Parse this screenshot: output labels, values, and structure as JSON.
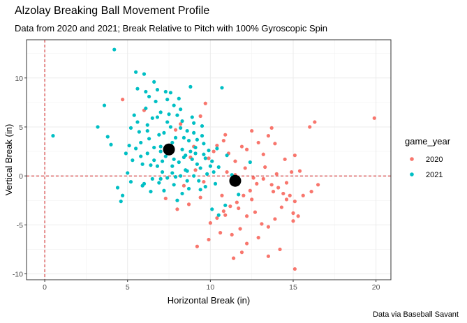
{
  "chart_data": {
    "type": "scatter",
    "title": "Alzolay Breaking Ball Movement Profile",
    "subtitle": "Data from 2020 and 2021; Break Relative to Pitch with 100% Gyroscopic Spin",
    "caption": "Data via Baseball Savant",
    "xlabel": "Horizontal Break (in)",
    "ylabel": "Vertical Break (in)",
    "xlim": [
      -1.1,
      20.9
    ],
    "ylim": [
      -10.6,
      13.9
    ],
    "x_ticks": [
      0,
      5,
      10,
      15,
      20
    ],
    "y_ticks": [
      -10,
      -5,
      0,
      5,
      10
    ],
    "grid": true,
    "reference_lines": {
      "x": 0,
      "y": 0,
      "style": "dashed",
      "color": "#cc0000"
    },
    "legend": {
      "title": "game_year",
      "position": "right"
    },
    "series": [
      {
        "name": "2020",
        "color": "#F8766D",
        "mean": [
          11.5,
          -0.5
        ],
        "points": [
          [
            4.7,
            7.8
          ],
          [
            6.0,
            6.7
          ],
          [
            7.9,
            4.7
          ],
          [
            8.2,
            5.3
          ],
          [
            9.4,
            6.1
          ],
          [
            9.7,
            7.4
          ],
          [
            9.0,
            3.0
          ],
          [
            9.9,
            1.8
          ],
          [
            10.2,
            2.5
          ],
          [
            10.8,
            3.6
          ],
          [
            10.9,
            4.2
          ],
          [
            11.1,
            2.3
          ],
          [
            11.5,
            1.5
          ],
          [
            11.9,
            3.0
          ],
          [
            12.2,
            2.7
          ],
          [
            12.5,
            4.6
          ],
          [
            12.9,
            3.4
          ],
          [
            13.2,
            2.2
          ],
          [
            13.5,
            4.1
          ],
          [
            13.7,
            4.9
          ],
          [
            13.9,
            3.3
          ],
          [
            14.5,
            1.7
          ],
          [
            14.9,
            0.4
          ],
          [
            15.1,
            2.1
          ],
          [
            15.4,
            0.5
          ],
          [
            16.0,
            5.0
          ],
          [
            16.3,
            5.5
          ],
          [
            19.9,
            5.9
          ],
          [
            16.5,
            -0.9
          ],
          [
            16.1,
            -1.6
          ],
          [
            15.6,
            -2.0
          ],
          [
            15.1,
            -2.6
          ],
          [
            14.8,
            -2.0
          ],
          [
            14.4,
            -1.8
          ],
          [
            14.1,
            -1.2
          ],
          [
            13.7,
            -0.9
          ],
          [
            13.2,
            -0.3
          ],
          [
            12.8,
            -0.8
          ],
          [
            12.4,
            -1.5
          ],
          [
            12.0,
            -2.0
          ],
          [
            11.6,
            -2.7
          ],
          [
            11.2,
            -3.1
          ],
          [
            10.8,
            -3.6
          ],
          [
            10.4,
            -4.3
          ],
          [
            10.0,
            -4.8
          ],
          [
            10.6,
            -5.8
          ],
          [
            11.3,
            -6.0
          ],
          [
            11.8,
            -5.4
          ],
          [
            12.2,
            -4.1
          ],
          [
            12.7,
            -3.7
          ],
          [
            13.1,
            -4.9
          ],
          [
            13.5,
            -5.2
          ],
          [
            13.9,
            -4.4
          ],
          [
            14.3,
            -3.2
          ],
          [
            14.6,
            -2.4
          ],
          [
            15.0,
            -3.8
          ],
          [
            15.3,
            -4.1
          ],
          [
            15.0,
            -4.6
          ],
          [
            12.9,
            -6.3
          ],
          [
            12.2,
            -6.9
          ],
          [
            11.9,
            -7.8
          ],
          [
            11.4,
            -8.4
          ],
          [
            13.5,
            -8.2
          ],
          [
            14.2,
            -7.5
          ],
          [
            15.1,
            -9.5
          ],
          [
            11.7,
            -3.3
          ],
          [
            12.5,
            -2.4
          ],
          [
            13.8,
            -1.6
          ],
          [
            14.6,
            -0.7
          ],
          [
            9.9,
            -6.5
          ],
          [
            9.2,
            -7.2
          ],
          [
            10.9,
            -4.0
          ],
          [
            10.7,
            -2.0
          ],
          [
            9.4,
            -2.2
          ],
          [
            8.7,
            -2.9
          ],
          [
            8.0,
            -3.4
          ],
          [
            7.3,
            -2.3
          ],
          [
            8.4,
            -1.0
          ],
          [
            9.1,
            0.6
          ],
          [
            8.8,
            1.9
          ],
          [
            11.5,
            0.1
          ],
          [
            12.1,
            0.8
          ],
          [
            13.3,
            0.9
          ],
          [
            14.0,
            0.2
          ],
          [
            12.6,
            -0.2
          ],
          [
            10.4,
            3.1
          ],
          [
            11.0,
            0.4
          ],
          [
            9.6,
            -0.6
          ]
        ]
      },
      {
        "name": "2021",
        "color": "#00BFC4",
        "mean": [
          7.5,
          2.7
        ],
        "points": [
          [
            0.5,
            4.1
          ],
          [
            3.2,
            5.0
          ],
          [
            3.6,
            7.2
          ],
          [
            3.8,
            4.0
          ],
          [
            4.0,
            3.2
          ],
          [
            4.2,
            12.9
          ],
          [
            4.4,
            -1.2
          ],
          [
            4.6,
            -2.6
          ],
          [
            4.7,
            -2.0
          ],
          [
            4.9,
            2.3
          ],
          [
            5.0,
            0.3
          ],
          [
            5.1,
            3.1
          ],
          [
            5.2,
            -0.6
          ],
          [
            5.3,
            1.6
          ],
          [
            5.4,
            6.2
          ],
          [
            5.5,
            10.6
          ],
          [
            5.6,
            8.9
          ],
          [
            5.7,
            4.5
          ],
          [
            5.8,
            2.0
          ],
          [
            5.9,
            -1.0
          ],
          [
            6.0,
            10.4
          ],
          [
            6.1,
            8.6
          ],
          [
            6.2,
            5.2
          ],
          [
            6.3,
            3.8
          ],
          [
            6.4,
            1.1
          ],
          [
            6.5,
            -0.3
          ],
          [
            6.6,
            9.6
          ],
          [
            6.7,
            7.6
          ],
          [
            6.8,
            6.0
          ],
          [
            6.9,
            4.2
          ],
          [
            7.0,
            2.5
          ],
          [
            7.1,
            0.4
          ],
          [
            7.2,
            -1.5
          ],
          [
            7.3,
            8.6
          ],
          [
            7.4,
            7.8
          ],
          [
            7.5,
            6.3
          ],
          [
            7.6,
            5.0
          ],
          [
            7.7,
            3.4
          ],
          [
            7.8,
            1.7
          ],
          [
            7.9,
            -0.1
          ],
          [
            8.0,
            -2.5
          ],
          [
            8.1,
            7.9
          ],
          [
            8.2,
            6.8
          ],
          [
            8.3,
            5.6
          ],
          [
            8.4,
            3.9
          ],
          [
            8.5,
            2.1
          ],
          [
            8.6,
            0.5
          ],
          [
            8.7,
            -1.3
          ],
          [
            8.8,
            9.1
          ],
          [
            8.9,
            6.0
          ],
          [
            9.0,
            4.4
          ],
          [
            9.1,
            2.9
          ],
          [
            9.2,
            1.2
          ],
          [
            9.3,
            -0.5
          ],
          [
            9.5,
            5.1
          ],
          [
            9.6,
            3.3
          ],
          [
            9.7,
            1.8
          ],
          [
            9.8,
            0.2
          ],
          [
            10.1,
            1.5
          ],
          [
            10.3,
            -0.8
          ],
          [
            10.5,
            0.9
          ],
          [
            10.7,
            9.0
          ],
          [
            11.0,
            2.1
          ],
          [
            11.3,
            0.1
          ],
          [
            11.7,
            -1.9
          ],
          [
            12.4,
            1.4
          ],
          [
            10.5,
            -4.0
          ],
          [
            10.9,
            -3.0
          ],
          [
            10.1,
            -3.4
          ],
          [
            10.4,
            2.8
          ],
          [
            6.2,
            2.3
          ],
          [
            6.6,
            1.6
          ],
          [
            7.0,
            3.0
          ],
          [
            7.3,
            2.0
          ],
          [
            7.7,
            1.0
          ],
          [
            8.1,
            1.4
          ],
          [
            8.5,
            0.6
          ],
          [
            8.9,
            1.7
          ],
          [
            5.8,
            3.4
          ],
          [
            6.2,
            4.6
          ],
          [
            6.8,
            1.0
          ],
          [
            7.2,
            4.4
          ],
          [
            7.9,
            3.9
          ],
          [
            8.3,
            2.7
          ],
          [
            8.7,
            3.6
          ],
          [
            9.1,
            2.3
          ],
          [
            9.4,
            0.8
          ],
          [
            5.5,
            2.8
          ],
          [
            6.0,
            -0.8
          ],
          [
            6.4,
            -1.6
          ],
          [
            6.9,
            -0.7
          ],
          [
            7.4,
            -0.2
          ],
          [
            7.8,
            -0.9
          ],
          [
            8.2,
            0.0
          ],
          [
            8.6,
            -0.5
          ],
          [
            9.0,
            0.0
          ],
          [
            9.4,
            -1.4
          ],
          [
            9.9,
            2.6
          ],
          [
            5.2,
            4.9
          ],
          [
            5.6,
            5.5
          ],
          [
            6.1,
            6.9
          ],
          [
            6.5,
            5.9
          ],
          [
            7.0,
            6.5
          ],
          [
            7.4,
            5.5
          ],
          [
            7.8,
            7.2
          ],
          [
            8.2,
            4.9
          ],
          [
            8.6,
            4.6
          ],
          [
            9.0,
            5.4
          ],
          [
            9.5,
            4.1
          ],
          [
            6.3,
            8.1
          ],
          [
            6.8,
            8.8
          ],
          [
            7.6,
            8.5
          ],
          [
            8.0,
            6.2
          ],
          [
            5.9,
            1.2
          ],
          [
            6.6,
            2.9
          ],
          [
            7.1,
            1.5
          ],
          [
            7.5,
            3.1
          ],
          [
            8.4,
            1.9
          ],
          [
            8.8,
            2.5
          ],
          [
            9.2,
            3.7
          ],
          [
            9.6,
            2.2
          ],
          [
            10.0,
            1.0
          ],
          [
            10.2,
            0.4
          ],
          [
            7.0,
            -0.3
          ],
          [
            7.7,
            0.3
          ],
          [
            8.3,
            -1.8
          ],
          [
            9.7,
            -1.1
          ]
        ]
      }
    ]
  }
}
